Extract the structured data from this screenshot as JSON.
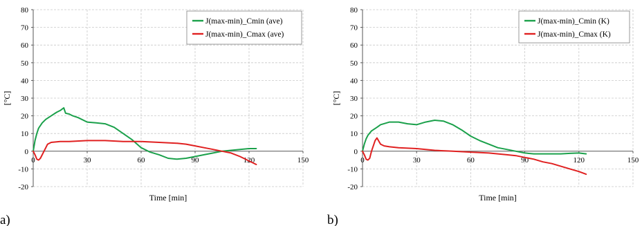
{
  "chart_data": [
    {
      "type": "line",
      "panel_label": "a)",
      "xlabel": "Time [min]",
      "ylabel": "[°C]",
      "xlim": [
        0,
        150
      ],
      "ylim": [
        -20,
        80
      ],
      "xticks": [
        0,
        30,
        60,
        90,
        120,
        150
      ],
      "yticks": [
        -20,
        -10,
        0,
        10,
        20,
        30,
        40,
        50,
        60,
        70,
        80
      ],
      "grid": true,
      "legend_position": "top-right",
      "series": [
        {
          "name": "J(max-min)_Cmin (ave)",
          "color": "#1aa04a",
          "x": [
            0,
            1,
            2,
            3,
            5,
            7,
            10,
            13,
            15,
            17,
            18,
            20,
            22,
            25,
            30,
            35,
            40,
            45,
            50,
            55,
            60,
            65,
            70,
            75,
            80,
            85,
            90,
            95,
            100,
            105,
            110,
            115,
            120,
            124
          ],
          "y": [
            0,
            6,
            10,
            13,
            16,
            18,
            20,
            22,
            23,
            24.5,
            21.5,
            21,
            20,
            19,
            16.5,
            16,
            15.5,
            13.5,
            10,
            6.5,
            2,
            -0.5,
            -2,
            -4,
            -4.5,
            -4,
            -3,
            -2,
            -1,
            0,
            0.5,
            1,
            1.5,
            1.5
          ]
        },
        {
          "name": "J(max-min)_Cmax (ave)",
          "color": "#e02020",
          "x": [
            0,
            1,
            2,
            3,
            4,
            6,
            8,
            10,
            15,
            20,
            30,
            40,
            50,
            60,
            70,
            80,
            85,
            90,
            95,
            100,
            105,
            110,
            115,
            120,
            124
          ],
          "y": [
            0,
            -2,
            -4.5,
            -5,
            -4,
            0,
            4,
            5,
            5.5,
            5.5,
            6,
            6,
            5.5,
            5.5,
            5,
            4.5,
            4,
            3,
            2,
            1,
            0,
            -1,
            -3,
            -5.5,
            -7.5
          ]
        }
      ]
    },
    {
      "type": "line",
      "panel_label": "b)",
      "xlabel": "Time [min]",
      "ylabel": "[°C]",
      "xlim": [
        0,
        150
      ],
      "ylim": [
        -20,
        80
      ],
      "xticks": [
        0,
        30,
        60,
        90,
        120,
        150
      ],
      "yticks": [
        -20,
        -10,
        0,
        10,
        20,
        30,
        40,
        50,
        60,
        70,
        80
      ],
      "grid": true,
      "legend_position": "top-right",
      "series": [
        {
          "name": "J(max-min)_Cmin (K)",
          "color": "#1aa04a",
          "x": [
            0,
            1,
            2,
            3,
            5,
            8,
            10,
            15,
            20,
            25,
            30,
            35,
            40,
            45,
            50,
            55,
            60,
            65,
            70,
            75,
            80,
            85,
            90,
            95,
            100,
            105,
            110,
            115,
            120,
            124
          ],
          "y": [
            0,
            4,
            7,
            9,
            11.5,
            13.5,
            15,
            16.5,
            16.5,
            15.5,
            15,
            16.5,
            17.5,
            17,
            15,
            12,
            8.5,
            6,
            4,
            2,
            1,
            0,
            -1,
            -1.5,
            -1.5,
            -1.5,
            -1.5,
            -1.2,
            -1,
            -1.5
          ]
        },
        {
          "name": "J(max-min)_Cmax (K)",
          "color": "#e02020",
          "x": [
            0,
            1,
            2,
            3,
            4,
            5,
            7,
            8,
            10,
            12,
            15,
            20,
            30,
            40,
            50,
            60,
            70,
            80,
            85,
            90,
            95,
            100,
            105,
            110,
            115,
            120,
            124
          ],
          "y": [
            0,
            -2,
            -4.5,
            -5,
            -4,
            0,
            6,
            7.5,
            4,
            3,
            2.5,
            2,
            1.5,
            0.5,
            0,
            -0.5,
            -1,
            -2,
            -2.5,
            -3.5,
            -4.5,
            -6,
            -7,
            -8.5,
            -10,
            -11.5,
            -13
          ]
        }
      ]
    }
  ]
}
